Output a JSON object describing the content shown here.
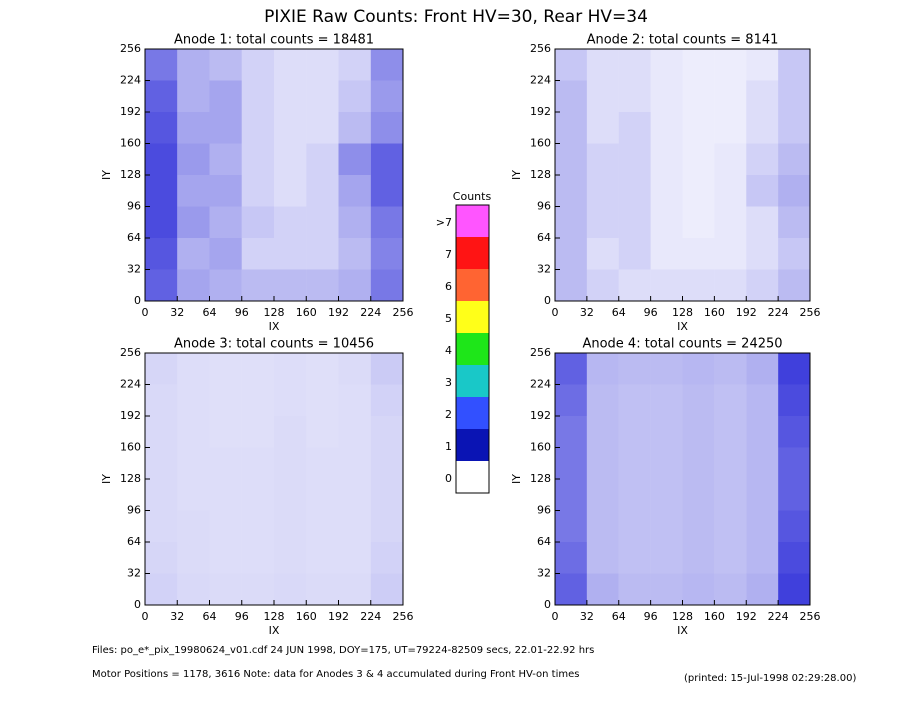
{
  "title": "PIXIE Raw Counts:  Front HV=30, Rear HV=34",
  "chart_data": [
    {
      "type": "heatmap",
      "title": "Anode 1: total counts = 18481",
      "xlabel": "IX",
      "ylabel": "IY",
      "xlim": [
        0,
        256
      ],
      "ylim": [
        0,
        256
      ],
      "xticks": [
        0,
        32,
        64,
        96,
        128,
        160,
        192,
        224,
        256
      ],
      "yticks": [
        0,
        32,
        64,
        96,
        128,
        160,
        192,
        224,
        256
      ],
      "color": "#0000d0",
      "z": [
        [
          700,
          400,
          350,
          300,
          300,
          300,
          350,
          600
        ],
        [
          750,
          350,
          400,
          200,
          200,
          200,
          300,
          550
        ],
        [
          800,
          450,
          350,
          250,
          200,
          200,
          350,
          600
        ],
        [
          800,
          400,
          400,
          200,
          150,
          200,
          400,
          700
        ],
        [
          800,
          450,
          350,
          200,
          150,
          200,
          500,
          700
        ],
        [
          750,
          400,
          400,
          200,
          150,
          150,
          300,
          500
        ],
        [
          700,
          350,
          400,
          200,
          150,
          150,
          250,
          450
        ],
        [
          600,
          350,
          300,
          200,
          150,
          150,
          200,
          500
        ]
      ]
    },
    {
      "type": "heatmap",
      "title": "Anode 2: total counts = 8141",
      "xlabel": "IX",
      "ylabel": "IY",
      "xlim": [
        0,
        256
      ],
      "ylim": [
        0,
        256
      ],
      "xticks": [
        0,
        32,
        64,
        96,
        128,
        160,
        192,
        224,
        256
      ],
      "yticks": [
        0,
        32,
        64,
        96,
        128,
        160,
        192,
        224,
        256
      ],
      "color": "#0000d0",
      "z": [
        [
          300,
          200,
          150,
          150,
          150,
          150,
          200,
          300
        ],
        [
          300,
          150,
          200,
          100,
          100,
          100,
          150,
          250
        ],
        [
          300,
          200,
          200,
          100,
          80,
          100,
          150,
          300
        ],
        [
          300,
          200,
          200,
          100,
          80,
          100,
          250,
          350
        ],
        [
          300,
          200,
          200,
          100,
          80,
          100,
          200,
          300
        ],
        [
          300,
          150,
          200,
          100,
          80,
          80,
          150,
          250
        ],
        [
          300,
          150,
          150,
          100,
          80,
          80,
          150,
          250
        ],
        [
          250,
          150,
          150,
          100,
          80,
          80,
          100,
          250
        ]
      ]
    },
    {
      "type": "heatmap",
      "title": "Anode 3: total counts = 10456",
      "xlabel": "IX",
      "ylabel": "IY",
      "xlim": [
        0,
        256
      ],
      "ylim": [
        0,
        256
      ],
      "xticks": [
        0,
        32,
        64,
        96,
        128,
        160,
        192,
        224,
        256
      ],
      "yticks": [
        0,
        32,
        64,
        96,
        128,
        160,
        192,
        224,
        256
      ],
      "color": "#0000d0",
      "z": [
        [
          200,
          170,
          160,
          160,
          170,
          160,
          160,
          220
        ],
        [
          180,
          160,
          150,
          150,
          160,
          150,
          150,
          200
        ],
        [
          170,
          160,
          150,
          150,
          160,
          150,
          150,
          180
        ],
        [
          170,
          150,
          150,
          150,
          160,
          150,
          150,
          180
        ],
        [
          170,
          150,
          150,
          150,
          160,
          150,
          150,
          180
        ],
        [
          170,
          150,
          140,
          140,
          160,
          140,
          150,
          180
        ],
        [
          170,
          150,
          140,
          140,
          150,
          140,
          150,
          200
        ],
        [
          180,
          150,
          140,
          140,
          150,
          140,
          160,
          230
        ]
      ]
    },
    {
      "type": "heatmap",
      "title": "Anode 4: total counts = 24250",
      "xlabel": "IX",
      "ylabel": "IY",
      "xlim": [
        0,
        256
      ],
      "ylim": [
        0,
        256
      ],
      "xticks": [
        0,
        32,
        64,
        96,
        128,
        160,
        192,
        224,
        256
      ],
      "yticks": [
        0,
        32,
        64,
        96,
        128,
        160,
        192,
        224,
        256
      ],
      "color": "#0000d0",
      "z": [
        [
          700,
          350,
          300,
          300,
          320,
          300,
          350,
          850
        ],
        [
          650,
          300,
          280,
          280,
          300,
          280,
          320,
          800
        ],
        [
          600,
          300,
          280,
          280,
          300,
          280,
          320,
          750
        ],
        [
          600,
          300,
          280,
          280,
          300,
          280,
          320,
          700
        ],
        [
          600,
          300,
          280,
          280,
          300,
          280,
          320,
          700
        ],
        [
          600,
          300,
          280,
          280,
          300,
          280,
          320,
          750
        ],
        [
          650,
          300,
          280,
          280,
          300,
          280,
          320,
          800
        ],
        [
          700,
          320,
          300,
          300,
          320,
          300,
          350,
          850
        ]
      ]
    }
  ],
  "colorbar": {
    "title": "Counts",
    "levels": [
      {
        "label": "0",
        "color": "#ffffff"
      },
      {
        "label": "1",
        "color": "#0a14b4"
      },
      {
        "label": "2",
        "color": "#3250ff"
      },
      {
        "label": "3",
        "color": "#19c8c8"
      },
      {
        "label": "4",
        "color": "#1ee619"
      },
      {
        "label": "5",
        "color": "#ffff19"
      },
      {
        "label": "6",
        "color": "#ff6432"
      },
      {
        "label": "7",
        "color": "#ff1414"
      },
      {
        "label": ">7",
        "color": "#ff55ff"
      }
    ]
  },
  "footer": {
    "line1": "Files: po_e*_pix_19980624_v01.cdf    24 JUN 1998, DOY=175, UT=79224-82509 secs, 22.01-22.92 hrs",
    "line2": "Motor Positions = 1178, 3616   Note: data for Anodes 3 & 4 accumulated during Front HV-on times",
    "printed": "(printed: 15-Jul-1998 02:29:28.00)"
  }
}
